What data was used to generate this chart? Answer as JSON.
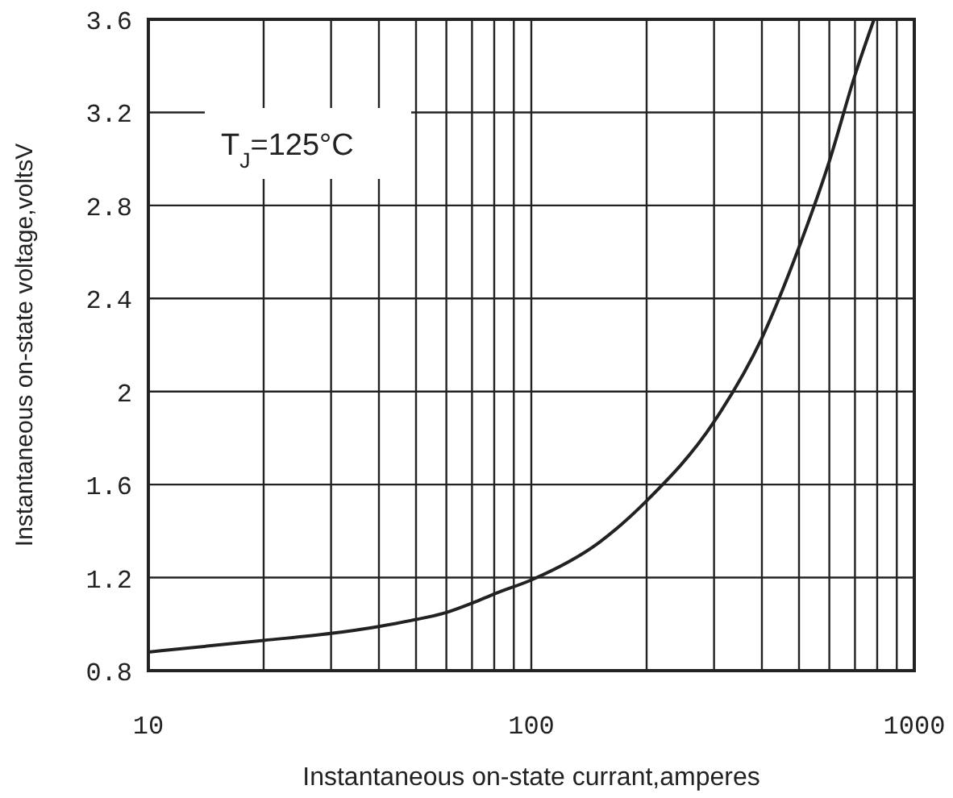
{
  "chart_data": {
    "type": "line",
    "xlabel": "Instantaneous on-state currant,amperes",
    "ylabel": "Instantaneous on-state voltage,voltsV",
    "log": "x",
    "grid": true,
    "xlim": [
      10,
      1000
    ],
    "ylim": [
      0.8,
      3.6
    ],
    "xticks": [
      10,
      {
        "value": 20,
        "label": null
      },
      {
        "value": 30,
        "label": null
      },
      {
        "value": 40,
        "label": null
      },
      {
        "value": 50,
        "label": null
      },
      {
        "value": 60,
        "label": null
      },
      {
        "value": 70,
        "label": null
      },
      {
        "value": 80,
        "label": null
      },
      {
        "value": 90,
        "label": null
      },
      100,
      {
        "value": 200,
        "label": null
      },
      {
        "value": 300,
        "label": null
      },
      {
        "value": 400,
        "label": null
      },
      {
        "value": 500,
        "label": null
      },
      {
        "value": 600,
        "label": null
      },
      {
        "value": 700,
        "label": null
      },
      {
        "value": 800,
        "label": null
      },
      {
        "value": 900,
        "label": null
      },
      1000
    ],
    "yticks": [
      0.8,
      1.2,
      1.6,
      2,
      2.4,
      2.8,
      3.2,
      3.6
    ],
    "annotations": [
      "T$_{J}$=125°C"
    ],
    "series": [
      {
        "color": "#222222",
        "x": [
          10,
          20,
          30,
          40,
          50,
          60,
          70,
          80,
          100,
          150,
          200,
          300,
          400,
          500,
          600,
          700,
          785
        ],
        "values": [
          0.88,
          0.93,
          0.96,
          0.99,
          1.02,
          1.05,
          1.09,
          1.13,
          1.19,
          1.35,
          1.53,
          1.87,
          2.23,
          2.62,
          2.99,
          3.36,
          3.6
        ]
      }
    ]
  }
}
